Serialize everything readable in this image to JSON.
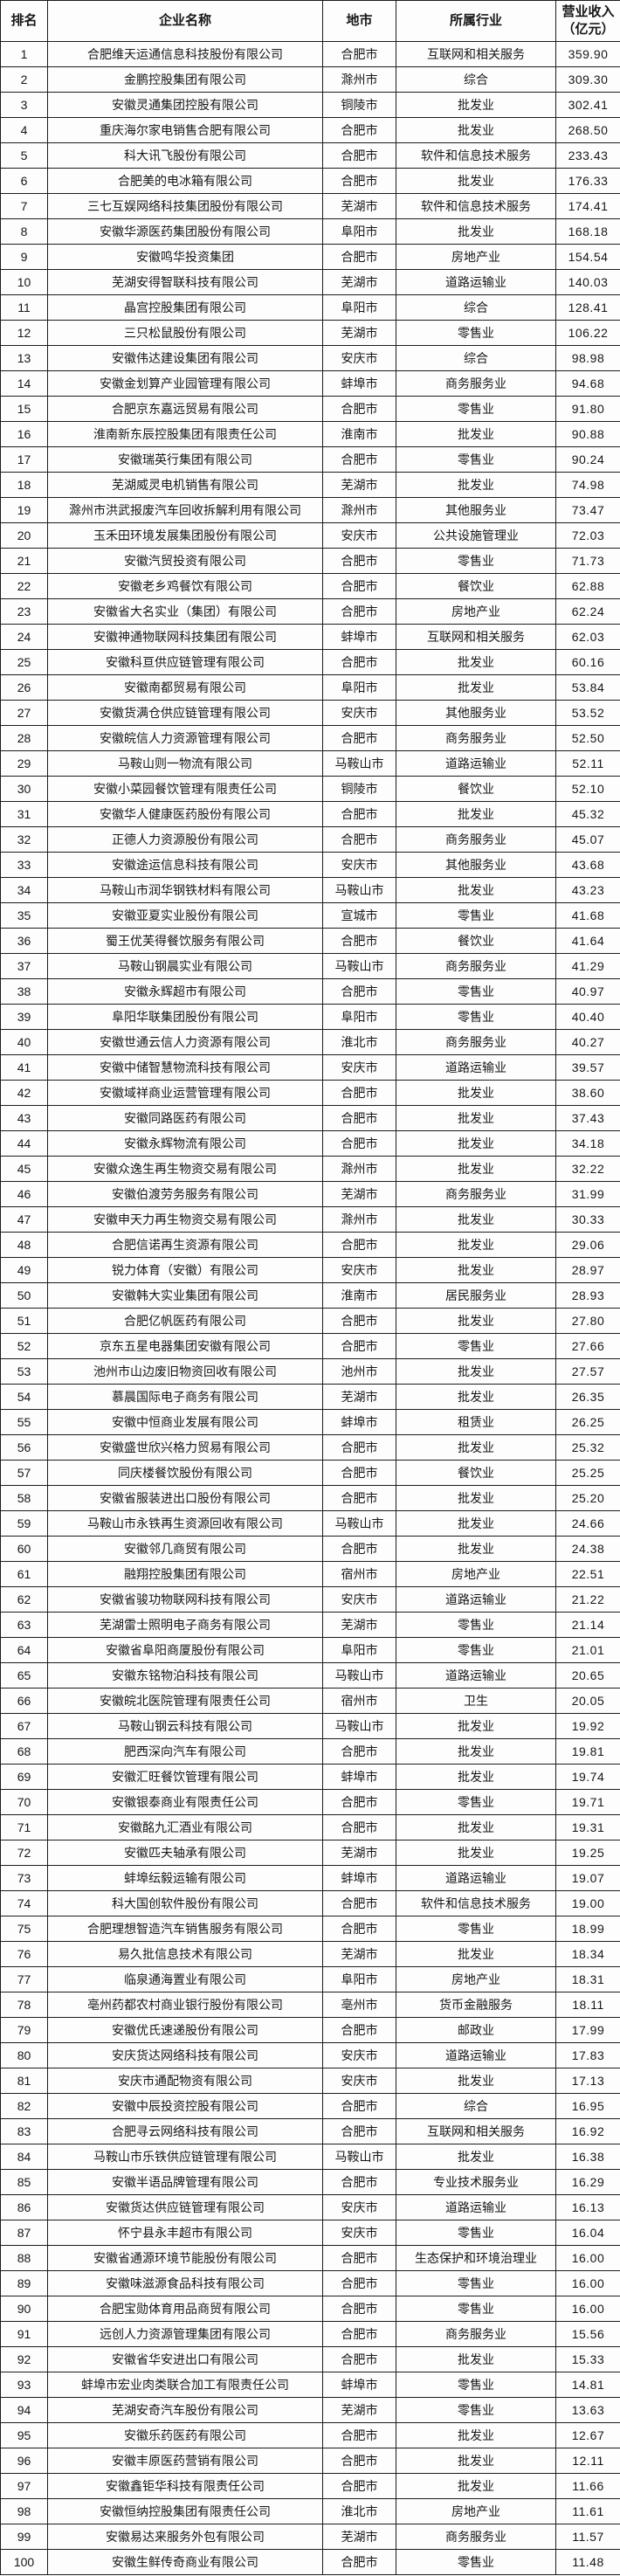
{
  "table": {
    "headers": [
      "排名",
      "企业名称",
      "地市",
      "所属行业",
      "营业收入\n（亿元）"
    ],
    "rows": [
      {
        "rank": "1",
        "name": "合肥维天运通信息科技股份有限公司",
        "city": "合肥市",
        "industry": "互联网和相关服务",
        "revenue": "359.90"
      },
      {
        "rank": "2",
        "name": "金鹏控股集团有限公司",
        "city": "滁州市",
        "industry": "综合",
        "revenue": "309.30"
      },
      {
        "rank": "3",
        "name": "安徽灵通集团控股有限公司",
        "city": "铜陵市",
        "industry": "批发业",
        "revenue": "302.41"
      },
      {
        "rank": "4",
        "name": "重庆海尔家电销售合肥有限公司",
        "city": "合肥市",
        "industry": "批发业",
        "revenue": "268.50"
      },
      {
        "rank": "5",
        "name": "科大讯飞股份有限公司",
        "city": "合肥市",
        "industry": "软件和信息技术服务",
        "revenue": "233.43"
      },
      {
        "rank": "6",
        "name": "合肥美的电冰箱有限公司",
        "city": "合肥市",
        "industry": "批发业",
        "revenue": "176.33"
      },
      {
        "rank": "7",
        "name": "三七互娱网络科技集团股份有限公司",
        "city": "芜湖市",
        "industry": "软件和信息技术服务",
        "revenue": "174.41"
      },
      {
        "rank": "8",
        "name": "安徽华源医药集团股份有限公司",
        "city": "阜阳市",
        "industry": "批发业",
        "revenue": "168.18"
      },
      {
        "rank": "9",
        "name": "安徽鸣华投资集团",
        "city": "合肥市",
        "industry": "房地产业",
        "revenue": "154.54"
      },
      {
        "rank": "10",
        "name": "芜湖安得智联科技有限公司",
        "city": "芜湖市",
        "industry": "道路运输业",
        "revenue": "140.03"
      },
      {
        "rank": "11",
        "name": "晶宫控股集团有限公司",
        "city": "阜阳市",
        "industry": "综合",
        "revenue": "128.41"
      },
      {
        "rank": "12",
        "name": "三只松鼠股份有限公司",
        "city": "芜湖市",
        "industry": "零售业",
        "revenue": "106.22"
      },
      {
        "rank": "13",
        "name": "安徽伟达建设集团有限公司",
        "city": "安庆市",
        "industry": "综合",
        "revenue": "98.98"
      },
      {
        "rank": "14",
        "name": "安徽金划算产业园管理有限公司",
        "city": "蚌埠市",
        "industry": "商务服务业",
        "revenue": "94.68"
      },
      {
        "rank": "15",
        "name": "合肥京东嘉远贸易有限公司",
        "city": "合肥市",
        "industry": "零售业",
        "revenue": "91.80"
      },
      {
        "rank": "16",
        "name": "淮南新东辰控股集团有限责任公司",
        "city": "淮南市",
        "industry": "批发业",
        "revenue": "90.88"
      },
      {
        "rank": "17",
        "name": "安徽瑞英行集团有限公司",
        "city": "合肥市",
        "industry": "零售业",
        "revenue": "90.24"
      },
      {
        "rank": "18",
        "name": "芜湖威灵电机销售有限公司",
        "city": "芜湖市",
        "industry": "批发业",
        "revenue": "74.98"
      },
      {
        "rank": "19",
        "name": "滁州市洪武报废汽车回收拆解利用有限公司",
        "city": "滁州市",
        "industry": "其他服务业",
        "revenue": "73.47"
      },
      {
        "rank": "20",
        "name": "玉禾田环境发展集团股份有限公司",
        "city": "安庆市",
        "industry": "公共设施管理业",
        "revenue": "72.03"
      },
      {
        "rank": "21",
        "name": "安徽汽贸投资有限公司",
        "city": "合肥市",
        "industry": "零售业",
        "revenue": "71.73"
      },
      {
        "rank": "22",
        "name": "安徽老乡鸡餐饮有限公司",
        "city": "合肥市",
        "industry": "餐饮业",
        "revenue": "62.88"
      },
      {
        "rank": "23",
        "name": "安徽省大名实业（集团）有限公司",
        "city": "合肥市",
        "industry": "房地产业",
        "revenue": "62.24"
      },
      {
        "rank": "24",
        "name": "安徽神通物联网科技集团有限公司",
        "city": "蚌埠市",
        "industry": "互联网和相关服务",
        "revenue": "62.03"
      },
      {
        "rank": "25",
        "name": "安徽科亘供应链管理有限公司",
        "city": "合肥市",
        "industry": "批发业",
        "revenue": "60.16"
      },
      {
        "rank": "26",
        "name": "安徽南都贸易有限公司",
        "city": "阜阳市",
        "industry": "批发业",
        "revenue": "53.84"
      },
      {
        "rank": "27",
        "name": "安徽货满仓供应链管理有限公司",
        "city": "安庆市",
        "industry": "其他服务业",
        "revenue": "53.52"
      },
      {
        "rank": "28",
        "name": "安徽皖信人力资源管理有限公司",
        "city": "合肥市",
        "industry": "商务服务业",
        "revenue": "52.50"
      },
      {
        "rank": "29",
        "name": "马鞍山则一物流有限公司",
        "city": "马鞍山市",
        "industry": "道路运输业",
        "revenue": "52.11"
      },
      {
        "rank": "30",
        "name": "安徽小菜园餐饮管理有限责任公司",
        "city": "铜陵市",
        "industry": "餐饮业",
        "revenue": "52.10"
      },
      {
        "rank": "31",
        "name": "安徽华人健康医药股份有限公司",
        "city": "合肥市",
        "industry": "批发业",
        "revenue": "45.32"
      },
      {
        "rank": "32",
        "name": "正德人力资源股份有限公司",
        "city": "合肥市",
        "industry": "商务服务业",
        "revenue": "45.07"
      },
      {
        "rank": "33",
        "name": "安徽途运信息科技有限公司",
        "city": "安庆市",
        "industry": "其他服务业",
        "revenue": "43.68"
      },
      {
        "rank": "34",
        "name": "马鞍山市润华钢铁材料有限公司",
        "city": "马鞍山市",
        "industry": "批发业",
        "revenue": "43.23"
      },
      {
        "rank": "35",
        "name": "安徽亚夏实业股份有限公司",
        "city": "宣城市",
        "industry": "零售业",
        "revenue": "41.68"
      },
      {
        "rank": "36",
        "name": "蜀王优芙得餐饮服务有限公司",
        "city": "合肥市",
        "industry": "餐饮业",
        "revenue": "41.64"
      },
      {
        "rank": "37",
        "name": "马鞍山钢晨实业有限公司",
        "city": "马鞍山市",
        "industry": "商务服务业",
        "revenue": "41.29"
      },
      {
        "rank": "38",
        "name": "安徽永辉超市有限公司",
        "city": "合肥市",
        "industry": "零售业",
        "revenue": "40.97"
      },
      {
        "rank": "39",
        "name": "阜阳华联集团股份有限公司",
        "city": "阜阳市",
        "industry": "零售业",
        "revenue": "40.40"
      },
      {
        "rank": "40",
        "name": "安徽世通云信人力资源有限公司",
        "city": "淮北市",
        "industry": "商务服务业",
        "revenue": "40.27"
      },
      {
        "rank": "41",
        "name": "安徽中储智慧物流科技有限公司",
        "city": "安庆市",
        "industry": "道路运输业",
        "revenue": "39.57"
      },
      {
        "rank": "42",
        "name": "安徽域祥商业运营管理有限公司",
        "city": "合肥市",
        "industry": "批发业",
        "revenue": "38.60"
      },
      {
        "rank": "43",
        "name": "安徽同路医药有限公司",
        "city": "合肥市",
        "industry": "批发业",
        "revenue": "37.43"
      },
      {
        "rank": "44",
        "name": "安徽永辉物流有限公司",
        "city": "合肥市",
        "industry": "批发业",
        "revenue": "34.18"
      },
      {
        "rank": "45",
        "name": "安徽众逸生再生物资交易有限公司",
        "city": "滁州市",
        "industry": "批发业",
        "revenue": "32.22"
      },
      {
        "rank": "46",
        "name": "安徽伯渡劳务服务有限公司",
        "city": "芜湖市",
        "industry": "商务服务业",
        "revenue": "31.99"
      },
      {
        "rank": "47",
        "name": "安徽申天力再生物资交易有限公司",
        "city": "滁州市",
        "industry": "批发业",
        "revenue": "30.33"
      },
      {
        "rank": "48",
        "name": "合肥信诺再生资源有限公司",
        "city": "合肥市",
        "industry": "批发业",
        "revenue": "29.06"
      },
      {
        "rank": "49",
        "name": "锐力体育（安徽）有限公司",
        "city": "安庆市",
        "industry": "批发业",
        "revenue": "28.97"
      },
      {
        "rank": "50",
        "name": "安徽韩大实业集团有限公司",
        "city": "淮南市",
        "industry": "居民服务业",
        "revenue": "28.93"
      },
      {
        "rank": "51",
        "name": "合肥亿帆医药有限公司",
        "city": "合肥市",
        "industry": "批发业",
        "revenue": "27.80"
      },
      {
        "rank": "52",
        "name": "京东五星电器集团安徽有限公司",
        "city": "合肥市",
        "industry": "零售业",
        "revenue": "27.66"
      },
      {
        "rank": "53",
        "name": "池州市山边废旧物资回收有限公司",
        "city": "池州市",
        "industry": "批发业",
        "revenue": "27.57"
      },
      {
        "rank": "54",
        "name": "慕晨国际电子商务有限公司",
        "city": "芜湖市",
        "industry": "批发业",
        "revenue": "26.35"
      },
      {
        "rank": "55",
        "name": "安徽中恒商业发展有限公司",
        "city": "蚌埠市",
        "industry": "租赁业",
        "revenue": "26.25"
      },
      {
        "rank": "56",
        "name": "安徽盛世欣兴格力贸易有限公司",
        "city": "合肥市",
        "industry": "批发业",
        "revenue": "25.32"
      },
      {
        "rank": "57",
        "name": "同庆楼餐饮股份有限公司",
        "city": "合肥市",
        "industry": "餐饮业",
        "revenue": "25.25"
      },
      {
        "rank": "58",
        "name": "安徽省服装进出口股份有限公司",
        "city": "合肥市",
        "industry": "批发业",
        "revenue": "25.20"
      },
      {
        "rank": "59",
        "name": "马鞍山市永铁再生资源回收有限公司",
        "city": "马鞍山市",
        "industry": "批发业",
        "revenue": "24.66"
      },
      {
        "rank": "60",
        "name": "安徽邻几商贸有限公司",
        "city": "合肥市",
        "industry": "批发业",
        "revenue": "24.38"
      },
      {
        "rank": "61",
        "name": "融翔控股集团有限公司",
        "city": "宿州市",
        "industry": "房地产业",
        "revenue": "22.51"
      },
      {
        "rank": "62",
        "name": "安徽省骏功物联网科技有限公司",
        "city": "安庆市",
        "industry": "道路运输业",
        "revenue": "21.22"
      },
      {
        "rank": "63",
        "name": "芜湖雷士照明电子商务有限公司",
        "city": "芜湖市",
        "industry": "零售业",
        "revenue": "21.14"
      },
      {
        "rank": "64",
        "name": "安徽省阜阳商厦股份有限公司",
        "city": "阜阳市",
        "industry": "零售业",
        "revenue": "21.01"
      },
      {
        "rank": "65",
        "name": "安徽东铭物泊科技有限公司",
        "city": "马鞍山市",
        "industry": "道路运输业",
        "revenue": "20.65"
      },
      {
        "rank": "66",
        "name": "安徽皖北医院管理有限责任公司",
        "city": "宿州市",
        "industry": "卫生",
        "revenue": "20.05"
      },
      {
        "rank": "67",
        "name": "马鞍山钢云科技有限公司",
        "city": "马鞍山市",
        "industry": "批发业",
        "revenue": "19.92"
      },
      {
        "rank": "68",
        "name": "肥西深向汽车有限公司",
        "city": "合肥市",
        "industry": "批发业",
        "revenue": "19.81"
      },
      {
        "rank": "69",
        "name": "安徽汇旺餐饮管理有限公司",
        "city": "蚌埠市",
        "industry": "批发业",
        "revenue": "19.74"
      },
      {
        "rank": "70",
        "name": "安徽银泰商业有限责任公司",
        "city": "合肥市",
        "industry": "零售业",
        "revenue": "19.71"
      },
      {
        "rank": "71",
        "name": "安徽酩九汇酒业有限公司",
        "city": "合肥市",
        "industry": "批发业",
        "revenue": "19.31"
      },
      {
        "rank": "72",
        "name": "安徽匹夫轴承有限公司",
        "city": "芜湖市",
        "industry": "批发业",
        "revenue": "19.25"
      },
      {
        "rank": "73",
        "name": "蚌埠纭毅运输有限公司",
        "city": "蚌埠市",
        "industry": "道路运输业",
        "revenue": "19.07"
      },
      {
        "rank": "74",
        "name": "科大国创软件股份有限公司",
        "city": "合肥市",
        "industry": "软件和信息技术服务",
        "revenue": "19.00"
      },
      {
        "rank": "75",
        "name": "合肥理想智造汽车销售服务有限公司",
        "city": "合肥市",
        "industry": "零售业",
        "revenue": "18.99"
      },
      {
        "rank": "76",
        "name": "易久批信息技术有限公司",
        "city": "芜湖市",
        "industry": "批发业",
        "revenue": "18.34"
      },
      {
        "rank": "77",
        "name": "临泉通海置业有限公司",
        "city": "阜阳市",
        "industry": "房地产业",
        "revenue": "18.31"
      },
      {
        "rank": "78",
        "name": "亳州药都农村商业银行股份有限公司",
        "city": "亳州市",
        "industry": "货币金融服务",
        "revenue": "18.11"
      },
      {
        "rank": "79",
        "name": "安徽优氏速递股份有限公司",
        "city": "合肥市",
        "industry": "邮政业",
        "revenue": "17.99"
      },
      {
        "rank": "80",
        "name": "安庆货达网络科技有限公司",
        "city": "安庆市",
        "industry": "道路运输业",
        "revenue": "17.83"
      },
      {
        "rank": "81",
        "name": "安庆市通配物资有限公司",
        "city": "安庆市",
        "industry": "批发业",
        "revenue": "17.13"
      },
      {
        "rank": "82",
        "name": "安徽中辰投资控股有限公司",
        "city": "合肥市",
        "industry": "综合",
        "revenue": "16.95"
      },
      {
        "rank": "83",
        "name": "合肥寻云网络科技有限公司",
        "city": "合肥市",
        "industry": "互联网和相关服务",
        "revenue": "16.92"
      },
      {
        "rank": "84",
        "name": "马鞍山市乐铁供应链管理有限公司",
        "city": "马鞍山市",
        "industry": "批发业",
        "revenue": "16.38"
      },
      {
        "rank": "85",
        "name": "安徽半语品牌管理有限公司",
        "city": "合肥市",
        "industry": "专业技术服务业",
        "revenue": "16.29"
      },
      {
        "rank": "86",
        "name": "安徽货达供应链管理有限公司",
        "city": "安庆市",
        "industry": "道路运输业",
        "revenue": "16.13"
      },
      {
        "rank": "87",
        "name": "怀宁县永丰超市有限公司",
        "city": "安庆市",
        "industry": "零售业",
        "revenue": "16.04"
      },
      {
        "rank": "88",
        "name": "安徽省通源环境节能股份有限公司",
        "city": "合肥市",
        "industry": "生态保护和环境治理业",
        "revenue": "16.00"
      },
      {
        "rank": "89",
        "name": "安徽味滋源食品科技有限公司",
        "city": "合肥市",
        "industry": "零售业",
        "revenue": "16.00"
      },
      {
        "rank": "90",
        "name": "合肥宝勋体育用品商贸有限公司",
        "city": "合肥市",
        "industry": "零售业",
        "revenue": "16.00"
      },
      {
        "rank": "91",
        "name": "远创人力资源管理集团有限公司",
        "city": "合肥市",
        "industry": "商务服务业",
        "revenue": "15.56"
      },
      {
        "rank": "92",
        "name": "安徽省华安进出口有限公司",
        "city": "合肥市",
        "industry": "批发业",
        "revenue": "15.33"
      },
      {
        "rank": "93",
        "name": "蚌埠市宏业肉类联合加工有限责任公司",
        "city": "蚌埠市",
        "industry": "零售业",
        "revenue": "14.81"
      },
      {
        "rank": "94",
        "name": "芜湖安奇汽车股份有限公司",
        "city": "芜湖市",
        "industry": "零售业",
        "revenue": "13.63"
      },
      {
        "rank": "95",
        "name": "安徽乐药医药有限公司",
        "city": "合肥市",
        "industry": "批发业",
        "revenue": "12.67"
      },
      {
        "rank": "96",
        "name": "安徽丰原医药营销有限公司",
        "city": "合肥市",
        "industry": "批发业",
        "revenue": "12.11"
      },
      {
        "rank": "97",
        "name": "安徽鑫钜华科技有限责任公司",
        "city": "合肥市",
        "industry": "批发业",
        "revenue": "11.66"
      },
      {
        "rank": "98",
        "name": "安徽恒纳控股集团有限责任公司",
        "city": "淮北市",
        "industry": "房地产业",
        "revenue": "11.61"
      },
      {
        "rank": "99",
        "name": "安徽易达来服务外包有限公司",
        "city": "芜湖市",
        "industry": "商务服务业",
        "revenue": "11.57"
      },
      {
        "rank": "100",
        "name": "安徽生鲜传奇商业有限公司",
        "city": "合肥市",
        "industry": "零售业",
        "revenue": "11.48"
      }
    ]
  }
}
